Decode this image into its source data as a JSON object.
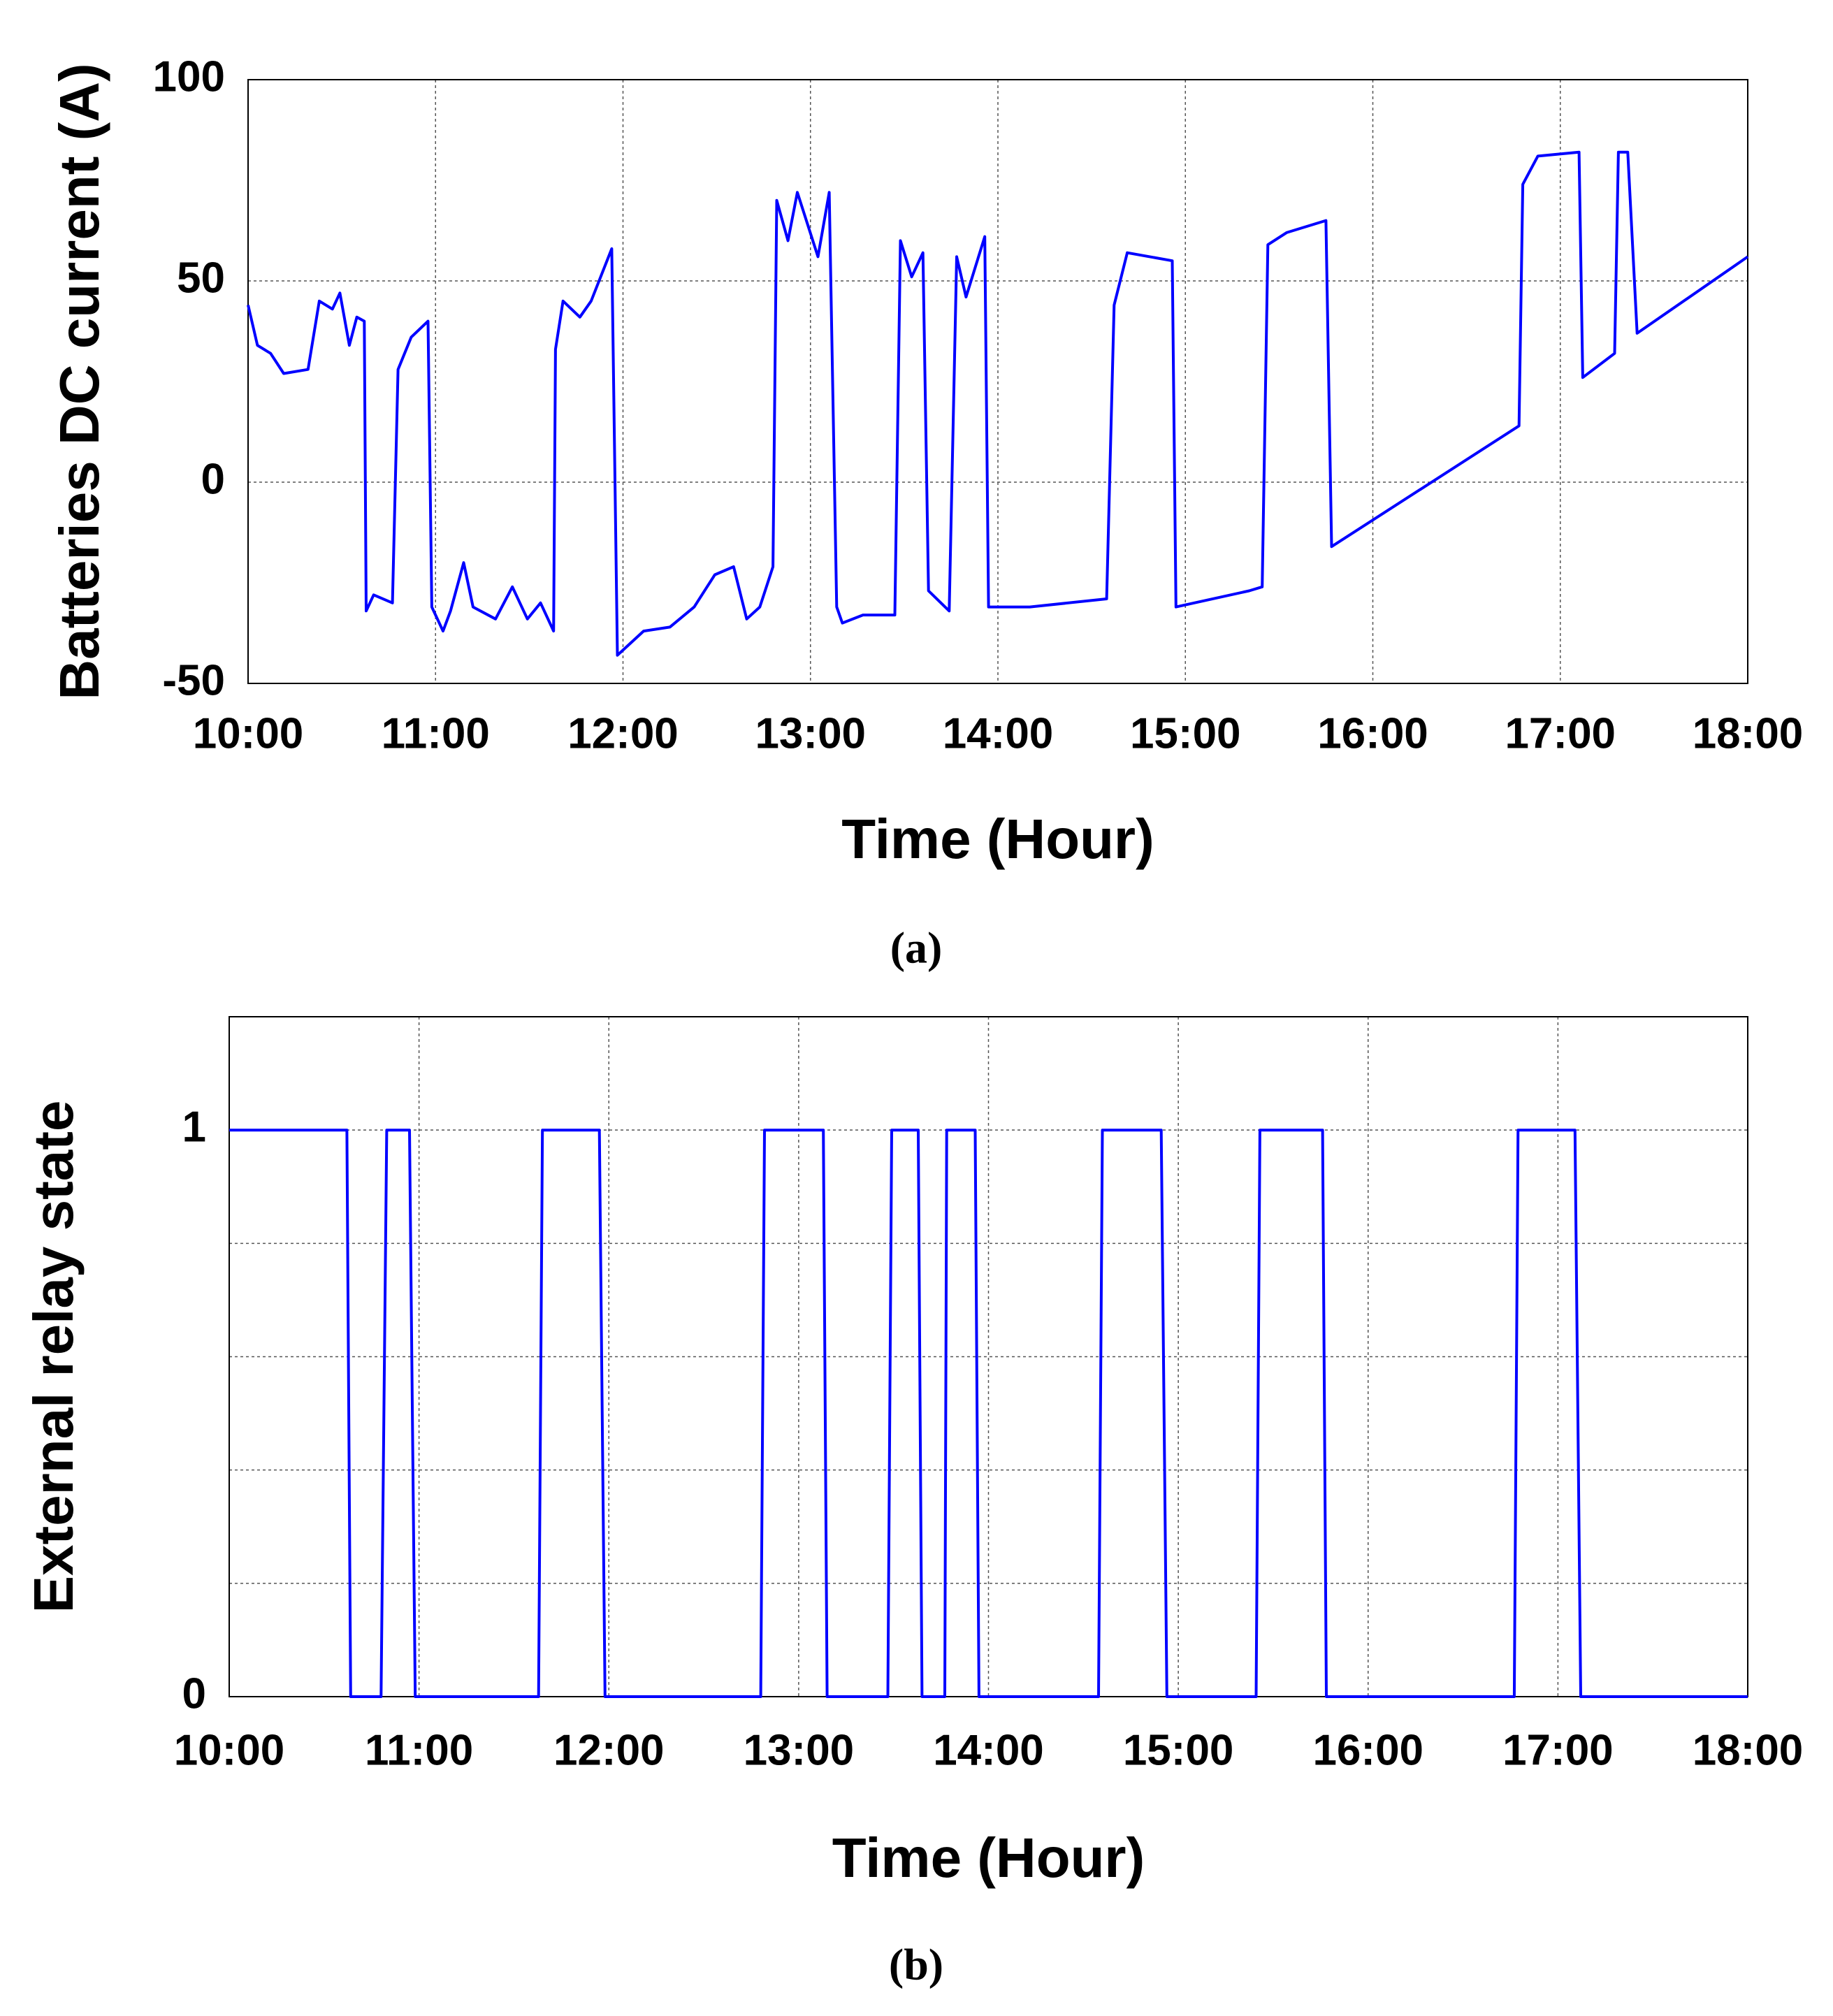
{
  "chart_data": [
    {
      "type": "line",
      "label": "(a)",
      "xlabel": "Time (Hour)",
      "ylabel": "Batteries DC current (A)",
      "xlim": [
        10,
        18
      ],
      "ylim": [
        -50,
        100
      ],
      "xticks": [
        {
          "value": 10,
          "label": "10:00"
        },
        {
          "value": 11,
          "label": "11:00"
        },
        {
          "value": 12,
          "label": "12:00"
        },
        {
          "value": 13,
          "label": "13:00"
        },
        {
          "value": 14,
          "label": "14:00"
        },
        {
          "value": 15,
          "label": "15:00"
        },
        {
          "value": 16,
          "label": "16:00"
        },
        {
          "value": 17,
          "label": "17:00"
        },
        {
          "value": 18,
          "label": "18:00"
        }
      ],
      "yticks": [
        -50,
        0,
        50,
        100
      ],
      "grid": true,
      "x": [
        10.0,
        10.05,
        10.12,
        10.19,
        10.32,
        10.38,
        10.45,
        10.49,
        10.54,
        10.58,
        10.62,
        10.63,
        10.67,
        10.77,
        10.8,
        10.87,
        10.96,
        10.98,
        11.04,
        11.08,
        11.15,
        11.2,
        11.32,
        11.41,
        11.49,
        11.56,
        11.63,
        11.64,
        11.68,
        11.77,
        11.83,
        11.94,
        11.97,
        12.11,
        12.25,
        12.38,
        12.49,
        12.59,
        12.66,
        12.73,
        12.8,
        12.82,
        12.88,
        12.93,
        13.04,
        13.1,
        13.14,
        13.17,
        13.28,
        13.45,
        13.48,
        13.54,
        13.6,
        13.63,
        13.74,
        13.78,
        13.83,
        13.93,
        13.95,
        14.17,
        14.58,
        14.62,
        14.69,
        14.93,
        14.95,
        15.34,
        15.41,
        15.44,
        15.54,
        15.75,
        15.78,
        16.78,
        16.8,
        16.88,
        17.1,
        17.12,
        17.29,
        17.31,
        17.36,
        17.41,
        18.0
      ],
      "series": [
        {
          "color": "#0000ff",
          "values": [
            44,
            34,
            32,
            27,
            28,
            45,
            43,
            47,
            34,
            41,
            40,
            -32,
            -28,
            -30,
            28,
            36,
            40,
            -31,
            -37,
            -32,
            -20,
            -31,
            -34,
            -26,
            -34,
            -30,
            -37,
            33,
            45,
            41,
            45,
            58,
            -43,
            -37,
            -36,
            -31,
            -23,
            -21,
            -34,
            -31,
            -21,
            70,
            60,
            72,
            56,
            72,
            -31,
            -35,
            -33,
            -33,
            60,
            51,
            57,
            -27,
            -32,
            56,
            46,
            61,
            -31,
            -31,
            -29,
            44,
            57,
            55,
            -31,
            -27,
            -26,
            59,
            62,
            65,
            -16,
            14,
            74,
            81,
            82,
            26,
            32,
            82,
            82,
            37,
            56
          ]
        }
      ]
    },
    {
      "type": "line",
      "label": "(b)",
      "xlabel": "Time (Hour)",
      "ylabel": "External relay state",
      "xlim": [
        10,
        18
      ],
      "ylim": [
        0,
        1.2
      ],
      "xticks": [
        {
          "value": 10,
          "label": "10:00"
        },
        {
          "value": 11,
          "label": "11:00"
        },
        {
          "value": 12,
          "label": "12:00"
        },
        {
          "value": 13,
          "label": "13:00"
        },
        {
          "value": 14,
          "label": "14:00"
        },
        {
          "value": 15,
          "label": "15:00"
        },
        {
          "value": 16,
          "label": "16:00"
        },
        {
          "value": 17,
          "label": "17:00"
        },
        {
          "value": 18,
          "label": "18:00"
        }
      ],
      "yticks": [
        0,
        1
      ],
      "minor_yticks": [
        0.2,
        0.4,
        0.6,
        0.8
      ],
      "grid": true,
      "x": [
        10,
        10.62,
        10.64,
        10.8,
        10.83,
        10.95,
        10.98,
        11.63,
        11.65,
        11.95,
        11.98,
        12.8,
        12.82,
        13.13,
        13.15,
        13.47,
        13.49,
        13.63,
        13.65,
        13.77,
        13.78,
        13.93,
        13.95,
        14.58,
        14.6,
        14.91,
        14.94,
        15.41,
        15.43,
        15.76,
        15.78,
        16.77,
        16.79,
        17.09,
        17.12,
        18.0
      ],
      "series": [
        {
          "color": "#0000ff",
          "values": [
            1,
            1,
            0,
            0,
            1,
            1,
            0,
            0,
            1,
            1,
            0,
            0,
            1,
            1,
            0,
            0,
            1,
            1,
            0,
            0,
            1,
            1,
            0,
            0,
            1,
            1,
            0,
            0,
            1,
            1,
            0,
            0,
            1,
            1,
            0,
            0
          ]
        }
      ]
    }
  ]
}
